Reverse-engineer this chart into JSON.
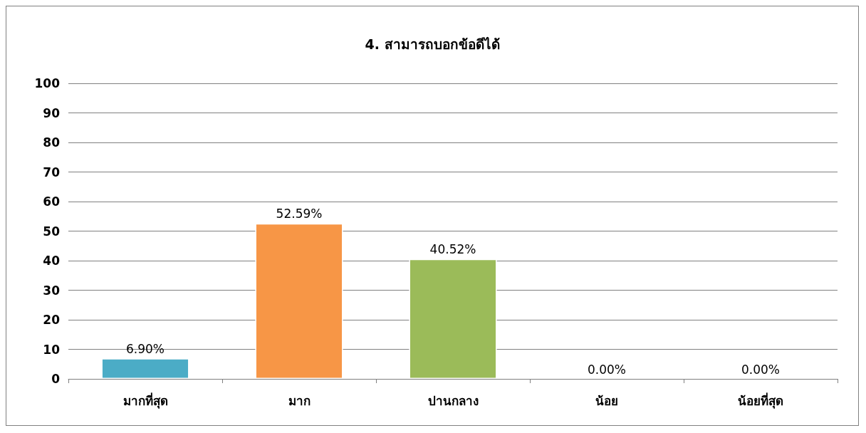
{
  "chart_data": {
    "type": "bar",
    "title": "4. สามารถบอกข้อดีได้",
    "categories": [
      "มากที่สุด",
      "มาก",
      "ปานกลาง",
      "น้อย",
      "น้อยที่สุด"
    ],
    "values": [
      6.9,
      52.59,
      40.52,
      0.0,
      0.0
    ],
    "colors": [
      "#4bacc6",
      "#f79646",
      "#9bbb59",
      "#8064a2",
      "#c0504d"
    ],
    "value_labels": [
      "6.90%",
      "52.59%",
      "40.52%",
      "0.00%",
      "0.00%"
    ],
    "ylim": [
      0,
      100
    ],
    "yticks": [
      0,
      10,
      20,
      30,
      40,
      50,
      60,
      70,
      80,
      90,
      100
    ],
    "grid": "y"
  }
}
